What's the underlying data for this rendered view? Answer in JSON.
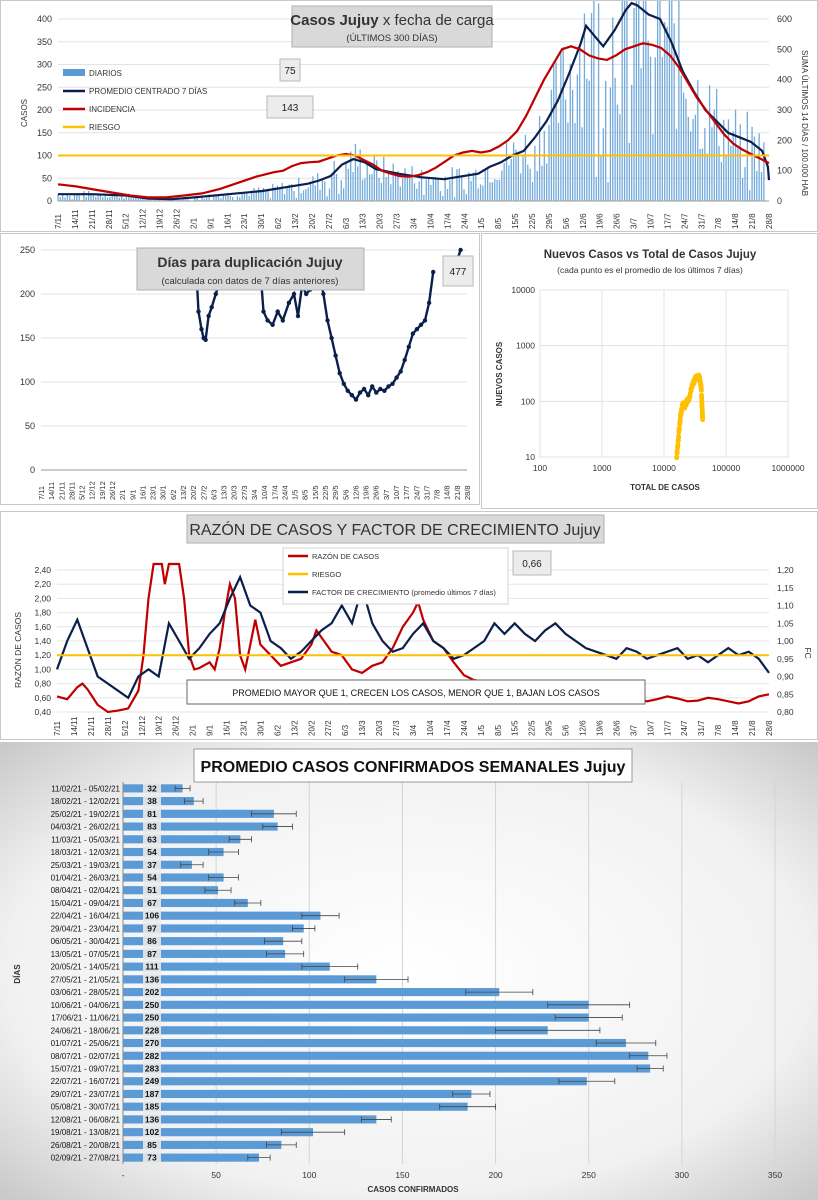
{
  "chart_data": [
    {
      "type": "bar",
      "title": "Casos Jujuy",
      "title_suffix": "x fecha de carga",
      "subtitle": "(ÚLTIMOS 300 DÍAS)",
      "ylabel": "CASOS",
      "ylabel_right": "SUMA ÚLTIMOS 14 DÍAS / 100.000 HAB",
      "ylim": [
        0,
        400
      ],
      "ylim_right": [
        0,
        600
      ],
      "yticks": [
        "0",
        "50",
        "100",
        "150",
        "200",
        "250",
        "300",
        "350",
        "400"
      ],
      "yticks_right": [
        "0",
        "100",
        "200",
        "300",
        "400",
        "500",
        "600"
      ],
      "xticks": [
        "7/11",
        "14/11",
        "21/11",
        "28/11",
        "5/12",
        "12/12",
        "19/12",
        "26/12",
        "2/1",
        "9/1",
        "16/1",
        "23/1",
        "30/1",
        "6/2",
        "13/2",
        "20/2",
        "27/2",
        "6/3",
        "13/3",
        "20/3",
        "27/3",
        "3/4",
        "10/4",
        "17/4",
        "24/4",
        "1/5",
        "8/5",
        "15/5",
        "22/5",
        "29/5",
        "5/6",
        "12/6",
        "19/6",
        "26/6",
        "3/7",
        "10/7",
        "17/7",
        "24/7",
        "31/7",
        "7/8",
        "14/8",
        "21/8",
        "28/8"
      ],
      "legend": [
        "DIARIOS",
        "PROMEDIO CENTRADO 7 DÍAS",
        "INCIDENCIA",
        "RIESGO"
      ],
      "value_box_1": "75",
      "value_box_2": "143",
      "riesgo": 100,
      "colors": {
        "diarios": "#5b9bd5",
        "promedio": "#0b1f4d",
        "incidencia": "#c00000",
        "riesgo": "#ffc000"
      },
      "series": [
        {
          "name": "PROMEDIO CENTRADO 7 DÍAS",
          "points": [
            [
              0,
              15
            ],
            [
              3,
              15
            ],
            [
              6,
              12
            ],
            [
              8,
              5
            ],
            [
              10,
              4
            ],
            [
              12,
              8
            ],
            [
              15,
              15
            ],
            [
              18,
              22
            ],
            [
              20,
              30
            ],
            [
              22,
              38
            ],
            [
              23,
              45
            ],
            [
              24,
              55
            ],
            [
              25,
              80
            ],
            [
              26,
              92
            ],
            [
              27,
              85
            ],
            [
              28,
              70
            ],
            [
              30,
              60
            ],
            [
              32,
              52
            ],
            [
              34,
              48
            ],
            [
              35,
              52
            ],
            [
              37,
              60
            ],
            [
              38,
              75
            ],
            [
              39,
              85
            ],
            [
              40,
              100
            ],
            [
              41,
              110
            ],
            [
              42,
              140
            ],
            [
              43,
              175
            ],
            [
              44,
              220
            ],
            [
              45,
              280
            ],
            [
              46,
              345
            ],
            [
              46.5,
              385
            ],
            [
              47,
              370
            ],
            [
              48,
              340
            ],
            [
              49,
              375
            ],
            [
              50,
              420
            ],
            [
              50.5,
              435
            ],
            [
              51,
              430
            ],
            [
              52,
              410
            ],
            [
              53,
              400
            ],
            [
              54,
              350
            ],
            [
              55,
              285
            ],
            [
              56,
              240
            ],
            [
              57,
              200
            ],
            [
              58,
              175
            ],
            [
              59,
              150
            ],
            [
              60,
              140
            ],
            [
              61,
              130
            ],
            [
              62,
              110
            ],
            [
              62.5,
              75
            ],
            [
              62.6,
              46
            ]
          ]
        },
        {
          "name": "INCIDENCIA",
          "axis": "right",
          "points": [
            [
              0,
              55
            ],
            [
              2,
              48
            ],
            [
              4,
              38
            ],
            [
              6,
              28
            ],
            [
              8,
              18
            ],
            [
              10,
              12
            ],
            [
              12,
              12
            ],
            [
              14,
              18
            ],
            [
              16,
              25
            ],
            [
              18,
              40
            ],
            [
              20,
              60
            ],
            [
              22,
              80
            ],
            [
              24,
              95
            ],
            [
              25,
              100
            ],
            [
              26,
              115
            ],
            [
              27,
              125
            ],
            [
              28,
              128
            ],
            [
              29,
              130
            ],
            [
              30,
              140
            ],
            [
              31,
              150
            ],
            [
              32,
              155
            ],
            [
              33,
              150
            ],
            [
              34,
              135
            ],
            [
              35,
              120
            ],
            [
              36,
              100
            ],
            [
              37,
              90
            ],
            [
              38,
              82
            ],
            [
              39,
              80
            ],
            [
              40,
              85
            ],
            [
              41,
              95
            ],
            [
              42,
              110
            ],
            [
              43,
              130
            ],
            [
              44,
              150
            ],
            [
              45,
              160
            ],
            [
              46,
              165
            ],
            [
              47,
              160
            ],
            [
              48,
              165
            ],
            [
              49,
              180
            ],
            [
              50,
              200
            ],
            [
              51,
              230
            ],
            [
              52,
              280
            ],
            [
              53,
              340
            ],
            [
              54,
              400
            ],
            [
              55,
              450
            ],
            [
              56,
              500
            ],
            [
              57,
              510
            ],
            [
              58,
              500
            ],
            [
              59,
              480
            ],
            [
              60,
              470
            ],
            [
              61,
              465
            ],
            [
              62,
              480
            ],
            [
              63,
              500
            ],
            [
              64,
              510
            ],
            [
              65,
              520
            ],
            [
              66,
              515
            ],
            [
              67,
              505
            ],
            [
              68,
              480
            ],
            [
              69,
              440
            ],
            [
              70,
              390
            ],
            [
              71,
              340
            ],
            [
              72,
              300
            ],
            [
              73,
              260
            ],
            [
              74,
              220
            ],
            [
              75,
              190
            ],
            [
              76,
              170
            ],
            [
              77,
              155
            ],
            [
              78,
              140
            ],
            [
              79,
              125
            ]
          ]
        }
      ]
    },
    {
      "type": "line",
      "title": "Días para duplicación Jujuy",
      "subtitle": "(calculada con datos de 7 días anteriores)",
      "value_box": "477",
      "ylim": [
        0,
        250
      ],
      "yticks": [
        "0",
        "50",
        "100",
        "150",
        "200",
        "250"
      ],
      "xticks": [
        "7/11",
        "14/11",
        "21/11",
        "28/11",
        "5/12",
        "12/12",
        "19/12",
        "26/12",
        "2/1",
        "9/1",
        "16/1",
        "23/1",
        "30/1",
        "6/2",
        "13/2",
        "20/2",
        "27/2",
        "6/3",
        "13/3",
        "20/3",
        "27/3",
        "3/4",
        "10/4",
        "17/4",
        "24/4",
        "1/5",
        "8/5",
        "15/5",
        "22/5",
        "29/5",
        "5/6",
        "12/6",
        "19/6",
        "26/6",
        "3/7",
        "10/7",
        "17/7",
        "24/7",
        "31/7",
        "7/8",
        "14/8",
        "21/8",
        "28/8"
      ]
    },
    {
      "type": "scatter",
      "title": "Nuevos Casos vs Total de Casos Jujuy",
      "subtitle": "(cada punto es el promedio de los últimos 7 días)",
      "xlabel": "TOTAL DE CASOS",
      "ylabel": "NUEVOS CASOS",
      "xscale": "log",
      "yscale": "log",
      "xticks": [
        "100",
        "1000",
        "10000",
        "100000",
        "1000000"
      ],
      "yticks": [
        "10",
        "100",
        "1000",
        "10000"
      ],
      "color": "#ffc000"
    },
    {
      "type": "line",
      "title": "RAZÓN DE CASOS Y FACTOR DE CRECIMIENTO Jujuy",
      "ylabel": "RAZÓN DE CASOS",
      "ylabel_right": "FC",
      "legend": [
        "RAZÓN DE CASOS",
        "RIESGO",
        "FACTOR DE CRECIMIENTO (promedio últimos 7 días)"
      ],
      "value_box": "0,66",
      "annotation": "PROMEDIO MAYOR QUE 1, CRECEN LOS CASOS, MENOR QUE 1, BAJAN LOS CASOS",
      "yticks": [
        "0,40",
        "0,60",
        "0,80",
        "1,00",
        "1,20",
        "1,40",
        "1,60",
        "1,80",
        "2,00",
        "2,20",
        "2,40"
      ],
      "yticks_right": [
        "0,80",
        "0,85",
        "0,90",
        "0,95",
        "1,00",
        "1,05",
        "1,10",
        "1,15",
        "1,20"
      ],
      "xticks": [
        "7/11",
        "14/11",
        "21/11",
        "28/11",
        "5/12",
        "12/12",
        "19/12",
        "26/12",
        "2/1",
        "9/1",
        "16/1",
        "23/1",
        "30/1",
        "6/2",
        "13/2",
        "20/2",
        "27/2",
        "6/3",
        "13/3",
        "20/3",
        "27/3",
        "3/4",
        "10/4",
        "17/4",
        "24/4",
        "1/5",
        "8/5",
        "15/5",
        "22/5",
        "29/5",
        "5/6",
        "12/6",
        "19/6",
        "26/6",
        "3/7",
        "10/7",
        "17/7",
        "24/7",
        "31/7",
        "7/8",
        "14/8",
        "21/8",
        "28/8"
      ]
    },
    {
      "type": "bar",
      "orientation": "horizontal",
      "title": "PROMEDIO CASOS CONFIRMADOS SEMANALES Jujuy",
      "xlabel": "CASOS CONFIRMADOS",
      "ylabel": "DÍAS",
      "xlim": [
        0,
        350
      ],
      "xticks": [
        "-",
        "50",
        "100",
        "150",
        "200",
        "250",
        "300",
        "350"
      ],
      "color": "#5b9bd5",
      "rows": [
        {
          "label": "11/02/21 - 05/02/21",
          "value": 32,
          "err": 4
        },
        {
          "label": "18/02/21 - 12/02/21",
          "value": 38,
          "err": 5
        },
        {
          "label": "25/02/21 - 19/02/21",
          "value": 81,
          "err": 12
        },
        {
          "label": "04/03/21 - 26/02/21",
          "value": 83,
          "err": 8
        },
        {
          "label": "11/03/21 - 05/03/21",
          "value": 63,
          "err": 6
        },
        {
          "label": "18/03/21 - 12/03/21",
          "value": 54,
          "err": 8
        },
        {
          "label": "25/03/21 - 19/03/21",
          "value": 37,
          "err": 6
        },
        {
          "label": "01/04/21 - 26/03/21",
          "value": 54,
          "err": 8
        },
        {
          "label": "08/04/21 - 02/04/21",
          "value": 51,
          "err": 7
        },
        {
          "label": "15/04/21 - 09/04/21",
          "value": 67,
          "err": 7
        },
        {
          "label": "22/04/21 - 16/04/21",
          "value": 106,
          "err": 10
        },
        {
          "label": "29/04/21 - 23/04/21",
          "value": 97,
          "err": 6
        },
        {
          "label": "06/05/21 - 30/04/21",
          "value": 86,
          "err": 10
        },
        {
          "label": "13/05/21 - 07/05/21",
          "value": 87,
          "err": 10
        },
        {
          "label": "20/05/21 - 14/05/21",
          "value": 111,
          "err": 15
        },
        {
          "label": "27/05/21 - 21/05/21",
          "value": 136,
          "err": 17
        },
        {
          "label": "03/06/21 - 28/05/21",
          "value": 202,
          "err": 18
        },
        {
          "label": "10/06/21 - 04/06/21",
          "value": 250,
          "err": 22
        },
        {
          "label": "17/06/21 - 11/06/21",
          "value": 250,
          "err": 18
        },
        {
          "label": "24/06/21 - 18/06/21",
          "value": 228,
          "err": 28
        },
        {
          "label": "01/07/21 - 25/06/21",
          "value": 270,
          "err": 16
        },
        {
          "label": "08/07/21 - 02/07/21",
          "value": 282,
          "err": 10
        },
        {
          "label": "15/07/21 - 09/07/21",
          "value": 283,
          "err": 7
        },
        {
          "label": "22/07/21 - 16/07/21",
          "value": 249,
          "err": 15
        },
        {
          "label": "29/07/21 - 23/07/21",
          "value": 187,
          "err": 10
        },
        {
          "label": "05/08/21 - 30/07/21",
          "value": 185,
          "err": 15
        },
        {
          "label": "12/08/21 - 06/08/21",
          "value": 136,
          "err": 8
        },
        {
          "label": "19/08/21 - 13/08/21",
          "value": 102,
          "err": 17
        },
        {
          "label": "26/08/21 - 20/08/21",
          "value": 85,
          "err": 8
        },
        {
          "label": "02/09/21 - 27/08/21",
          "value": 73,
          "err": 6
        }
      ]
    }
  ]
}
